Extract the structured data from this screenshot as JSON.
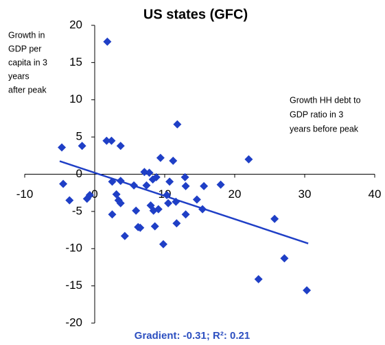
{
  "chart_data": {
    "type": "scatter",
    "title": "US states (GFC)",
    "y_label": [
      "Growth in",
      "GDP  per",
      "capita in 3",
      "years",
      "after peak"
    ],
    "x_label": [
      "Growth HH  debt to",
      "GDP  ratio in 3",
      "years before peak"
    ],
    "footnote": "Gradient: -0.31;   R²: 0.21",
    "color": "#1f3fc6",
    "xlim": [
      -10,
      40
    ],
    "ylim": [
      -20,
      20
    ],
    "xticks": [
      -10,
      0,
      10,
      20,
      30,
      40
    ],
    "yticks": [
      -20,
      -15,
      -10,
      -5,
      0,
      5,
      10,
      15,
      20
    ],
    "x": [
      -4.7,
      -4.5,
      -3.6,
      -1.8,
      -1.1,
      -0.7,
      1.8,
      1.7,
      2.4,
      2.5,
      2.5,
      3.1,
      3.4,
      3.7,
      3.7,
      3.7,
      4.3,
      5.6,
      5.9,
      6.2,
      6.5,
      7.1,
      7.4,
      7.8,
      8.0,
      8.3,
      8.4,
      8.6,
      8.8,
      9.1,
      9.4,
      9.8,
      10.3,
      10.5,
      10.7,
      11.2,
      11.6,
      11.8,
      11.7,
      12.9,
      13.0,
      13.0,
      14.6,
      15.4,
      15.6,
      18.0,
      22.0,
      23.4,
      25.7,
      27.1,
      30.3
    ],
    "y": [
      3.6,
      -1.3,
      -3.5,
      3.8,
      -3.3,
      -2.8,
      17.8,
      4.5,
      4.5,
      -1.0,
      -5.4,
      -2.7,
      -3.5,
      -3.9,
      3.8,
      -0.9,
      -8.3,
      -1.5,
      -4.9,
      -7.1,
      -7.2,
      0.3,
      -1.5,
      0.2,
      -4.2,
      -0.7,
      -4.9,
      -7.0,
      -0.4,
      -4.7,
      2.2,
      -9.4,
      -2.8,
      -3.9,
      -1.0,
      1.8,
      -3.7,
      6.7,
      -6.6,
      -0.4,
      -1.6,
      -5.4,
      -3.4,
      -4.7,
      -1.6,
      -1.4,
      2.0,
      -14.1,
      -6.0,
      -11.3,
      -15.6
    ],
    "trendline": {
      "x": [
        -5,
        30.5
      ],
      "y": [
        1.75,
        -9.3
      ]
    }
  }
}
